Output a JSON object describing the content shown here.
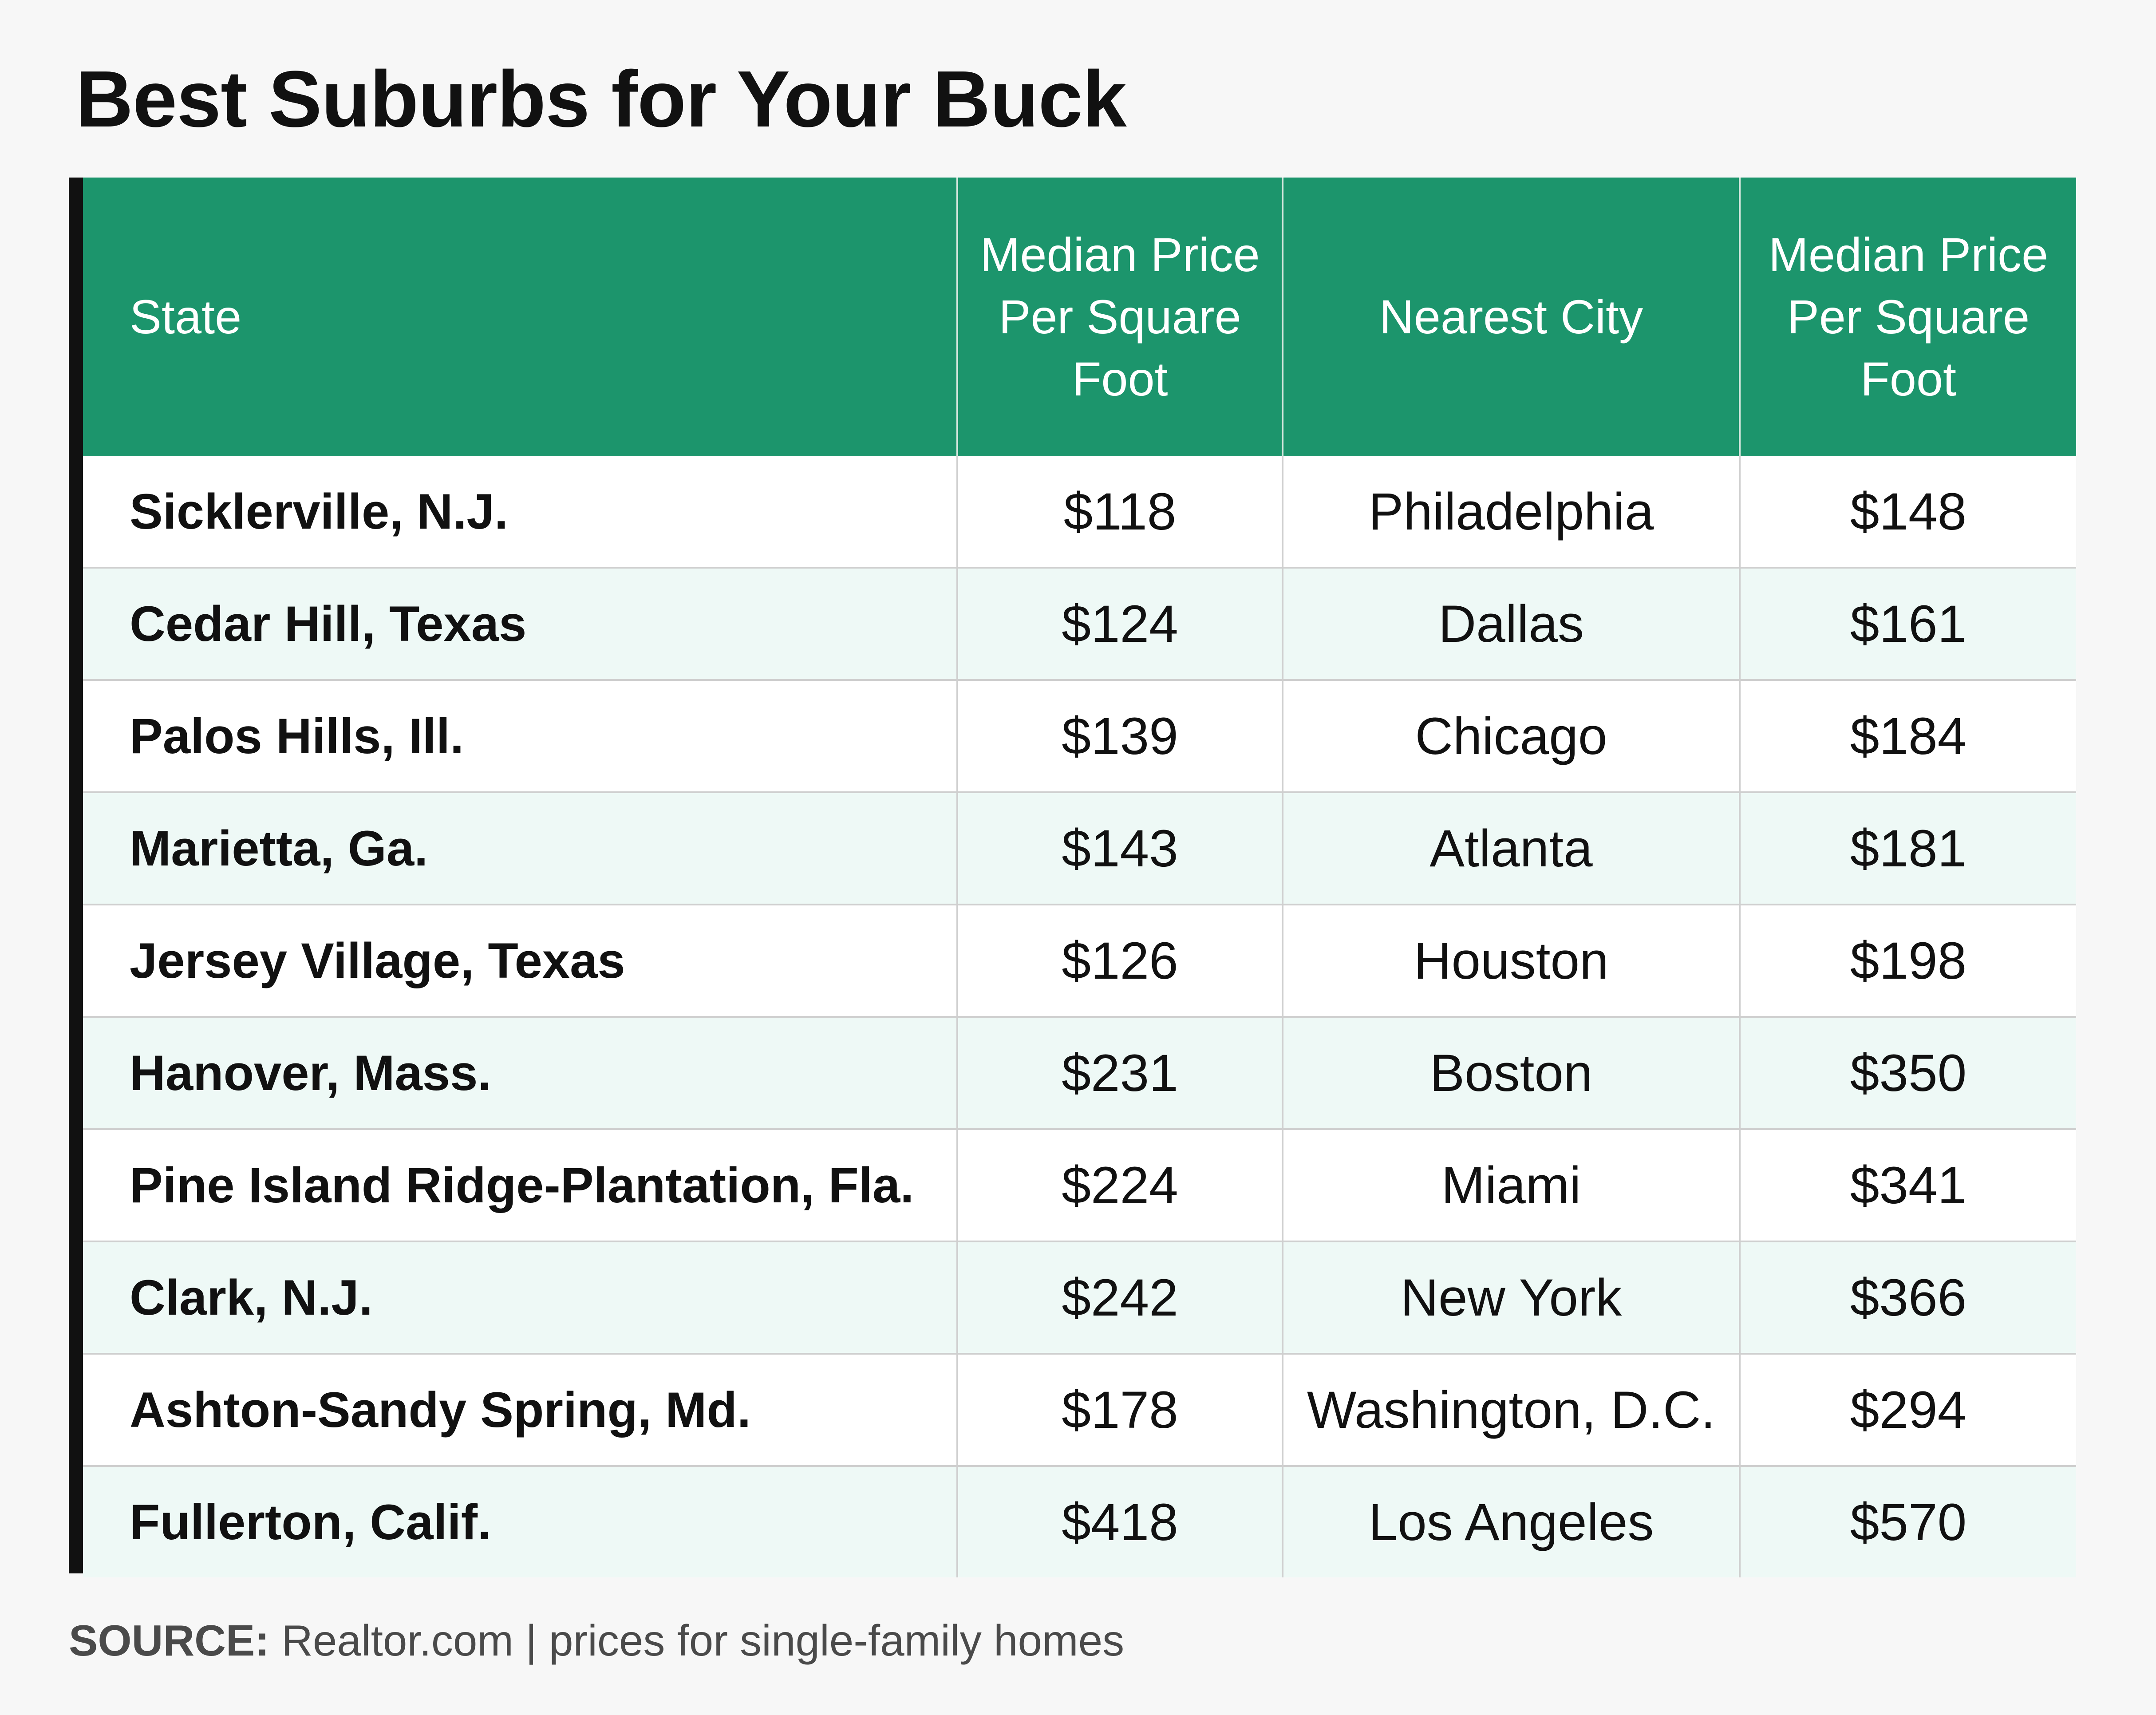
{
  "chart_data": {
    "type": "table",
    "title": "Best Suburbs for Your Buck",
    "columns": [
      "State",
      "Median Price Per Square Foot",
      "Nearest City",
      "Median Price Per Square Foot"
    ],
    "rows": [
      [
        "Sicklerville, N.J.",
        "$118",
        "Philadelphia",
        "$148"
      ],
      [
        "Cedar Hill, Texas",
        "$124",
        "Dallas",
        "$161"
      ],
      [
        "Palos Hills, Ill.",
        "$139",
        "Chicago",
        "$184"
      ],
      [
        "Marietta, Ga.",
        "$143",
        "Atlanta",
        "$181"
      ],
      [
        "Jersey Village, Texas",
        "$126",
        "Houston",
        "$198"
      ],
      [
        "Hanover, Mass.",
        "$231",
        "Boston",
        "$350"
      ],
      [
        "Pine Island Ridge-Plantation, Fla.",
        "$224",
        "Miami",
        "$341"
      ],
      [
        "Clark, N.J.",
        "$242",
        "New York",
        "$366"
      ],
      [
        "Ashton-Sandy Spring, Md.",
        "$178",
        "Washington, D.C.",
        "$294"
      ],
      [
        "Fullerton, Calif.",
        "$418",
        "Los Angeles",
        "$570"
      ]
    ]
  },
  "source": {
    "label": "SOURCE:",
    "text": "Realtor.com | prices for single-family homes"
  },
  "colors": {
    "header_background": "#1c956c",
    "header_text": "#ffffff",
    "row_odd": "#ffffff",
    "row_even": "#eef9f6",
    "frame": "#111111"
  }
}
